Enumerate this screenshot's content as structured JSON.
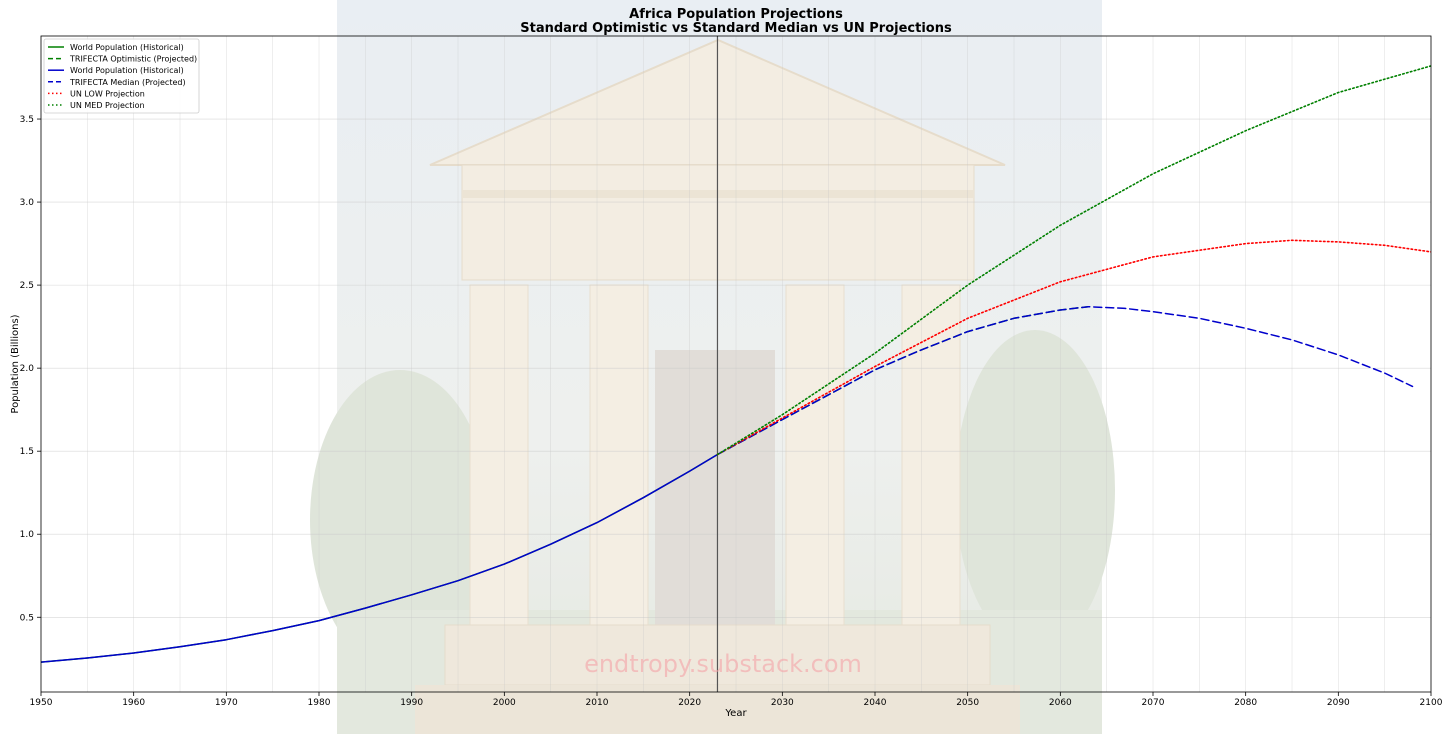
{
  "chart_data": {
    "type": "line",
    "title": "Africa Population Projections",
    "subtitle": "Standard Optimistic vs Standard Median vs UN Projections",
    "xlabel": "Year",
    "ylabel": "Population (Billions)",
    "xlim": [
      1950,
      2100
    ],
    "ylim": [
      0.05,
      4.0
    ],
    "xticks": [
      1950,
      1960,
      1970,
      1980,
      1990,
      2000,
      2010,
      2020,
      2030,
      2040,
      2050,
      2060,
      2070,
      2080,
      2090,
      2100
    ],
    "yticks": [
      0.5,
      1.0,
      1.5,
      2.0,
      2.5,
      3.0,
      3.5
    ],
    "grid": true,
    "legend_position": "top-left",
    "vertical_marker_x": 2023,
    "series": [
      {
        "name": "World Population (Historical)",
        "color": "#008000",
        "style": "solid",
        "x": [
          1950,
          1955,
          1960,
          1965,
          1970,
          1975,
          1980,
          1985,
          1990,
          1995,
          2000,
          2005,
          2010,
          2015,
          2020,
          2023
        ],
        "y": [
          0.23,
          0.255,
          0.285,
          0.323,
          0.365,
          0.42,
          0.48,
          0.555,
          0.635,
          0.72,
          0.82,
          0.94,
          1.07,
          1.22,
          1.38,
          1.48
        ]
      },
      {
        "name": "TRIFECTA Optimistic (Projected)",
        "color": "#008000",
        "style": "dashed",
        "x": [
          2023,
          2025,
          2030,
          2035,
          2040,
          2045,
          2050,
          2055,
          2060,
          2063
        ],
        "y": [
          1.48,
          1.54,
          1.69,
          1.84,
          1.99,
          2.11,
          2.22,
          2.3,
          2.35,
          2.37
        ]
      },
      {
        "name": "World Population (Historical)",
        "color": "#0000cc",
        "style": "solid",
        "x": [
          1950,
          1955,
          1960,
          1965,
          1970,
          1975,
          1980,
          1985,
          1990,
          1995,
          2000,
          2005,
          2010,
          2015,
          2020,
          2023
        ],
        "y": [
          0.23,
          0.255,
          0.285,
          0.323,
          0.365,
          0.42,
          0.48,
          0.555,
          0.635,
          0.72,
          0.82,
          0.94,
          1.07,
          1.22,
          1.38,
          1.48
        ]
      },
      {
        "name": "TRIFECTA Median (Projected)",
        "color": "#0000cc",
        "style": "dashed",
        "x": [
          2023,
          2025,
          2030,
          2035,
          2040,
          2045,
          2050,
          2055,
          2060,
          2063,
          2067,
          2070,
          2075,
          2080,
          2085,
          2090,
          2095,
          2098
        ],
        "y": [
          1.48,
          1.54,
          1.69,
          1.84,
          1.99,
          2.11,
          2.22,
          2.3,
          2.35,
          2.37,
          2.36,
          2.34,
          2.3,
          2.24,
          2.17,
          2.08,
          1.97,
          1.89
        ]
      },
      {
        "name": "UN LOW Projection",
        "color": "#ff0000",
        "style": "dotted",
        "x": [
          2023,
          2030,
          2040,
          2050,
          2060,
          2070,
          2080,
          2085,
          2090,
          2095,
          2100
        ],
        "y": [
          1.48,
          1.7,
          2.01,
          2.3,
          2.52,
          2.67,
          2.75,
          2.77,
          2.76,
          2.74,
          2.7
        ]
      },
      {
        "name": "UN MED Projection",
        "color": "#008000",
        "style": "dotted",
        "x": [
          2023,
          2030,
          2040,
          2050,
          2060,
          2070,
          2080,
          2090,
          2100
        ],
        "y": [
          1.48,
          1.72,
          2.09,
          2.5,
          2.86,
          3.17,
          3.43,
          3.66,
          3.82
        ]
      }
    ]
  },
  "watermark": "endtropy.substack.com"
}
